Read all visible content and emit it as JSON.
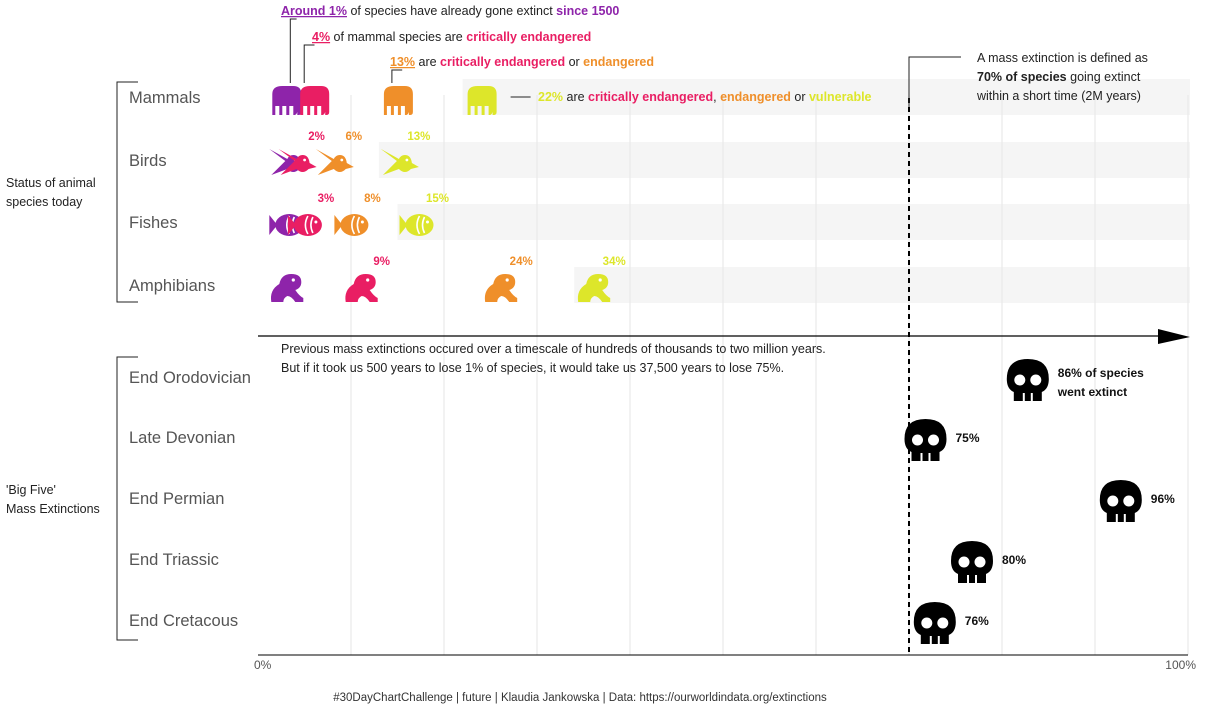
{
  "colors": {
    "extinct": "#8e24aa",
    "critically_endangered": "#e91e63",
    "endangered": "#ef8f2a",
    "vulnerable": "#dde62a",
    "skull": "#000000",
    "band": "#f5f5f5",
    "grid": "#e6e6e6",
    "text": "#222222",
    "label_gray": "#555555"
  },
  "annotations": {
    "line1": {
      "p1": "Around 1%",
      "p2": " of species have already gone extinct ",
      "p3": "since 1500"
    },
    "line2": {
      "p1": "4%",
      "p2": " of mammal species are ",
      "p3": "critically endangered"
    },
    "line3": {
      "p1": "13%",
      "p2": " are ",
      "p3": "critically endangered",
      "p4": " or ",
      "p5": "endangered"
    },
    "line4": {
      "p1": "22%",
      "p2": " are ",
      "p3": "critically endangered",
      "p4": ", ",
      "p5": "endangered",
      "p6": " or ",
      "p7": "vulnerable"
    },
    "mass_def": {
      "l1": "A mass extinction is defined as",
      "l2": "70% of species",
      "l3": " going extinct",
      "l4": "within a short time (2M years)"
    },
    "timescale": {
      "l1": "Previous mass extinctions occured over a timescale of hundreds of thousands to two million years.",
      "l2": "But if it took us 500 years to lose 1% of species, it would take us 37,500 years to lose 75%."
    }
  },
  "groups": {
    "top": "Status of animal species today",
    "bottom": "'Big Five' Mass Extinctions"
  },
  "axis": {
    "min": "0%",
    "max": "100%"
  },
  "footer": "#30DayChartChallenge  |  future  |  Klaudia Jankowska  |  Data: https://ourworldindata.org/extinctions",
  "chart_data": [
    {
      "type": "scatter",
      "categories": [
        "Mammals",
        "Birds",
        "Fishes",
        "Amphibians"
      ],
      "xlim": [
        0,
        100
      ],
      "series": [
        {
          "name": "Mammals",
          "icon": "elephant-icon",
          "points": [
            {
              "x": 1,
              "status": "extinct",
              "label": ""
            },
            {
              "x": 4,
              "status": "critically_endangered",
              "label": ""
            },
            {
              "x": 13,
              "status": "endangered",
              "label": ""
            },
            {
              "x": 22,
              "status": "vulnerable",
              "label": ""
            }
          ]
        },
        {
          "name": "Birds",
          "icon": "bird-icon",
          "points": [
            {
              "x": 1,
              "status": "extinct",
              "label": ""
            },
            {
              "x": 2,
              "status": "critically_endangered",
              "label": "2%"
            },
            {
              "x": 6,
              "status": "endangered",
              "label": "6%"
            },
            {
              "x": 13,
              "status": "vulnerable",
              "label": "13%"
            }
          ]
        },
        {
          "name": "Fishes",
          "icon": "fish-icon",
          "points": [
            {
              "x": 1,
              "status": "extinct",
              "label": ""
            },
            {
              "x": 3,
              "status": "critically_endangered",
              "label": "3%"
            },
            {
              "x": 8,
              "status": "endangered",
              "label": "8%"
            },
            {
              "x": 15,
              "status": "vulnerable",
              "label": "15%"
            }
          ]
        },
        {
          "name": "Amphibians",
          "icon": "frog-icon",
          "points": [
            {
              "x": 1,
              "status": "extinct",
              "label": ""
            },
            {
              "x": 9,
              "status": "critically_endangered",
              "label": "9%"
            },
            {
              "x": 24,
              "status": "endangered",
              "label": "24%"
            },
            {
              "x": 34,
              "status": "vulnerable",
              "label": "34%"
            }
          ]
        }
      ]
    },
    {
      "type": "scatter",
      "categories": [
        "End Orodovician",
        "Late Devonian",
        "End Permian",
        "End Triassic",
        "End Cretacous"
      ],
      "xlim": [
        0,
        100
      ],
      "threshold": 70,
      "values": [
        86,
        75,
        96,
        80,
        76
      ],
      "labels": [
        "86% of species\nwent extinct",
        "75%",
        "96%",
        "80%",
        "76%"
      ],
      "icon": "skull-icon"
    }
  ]
}
